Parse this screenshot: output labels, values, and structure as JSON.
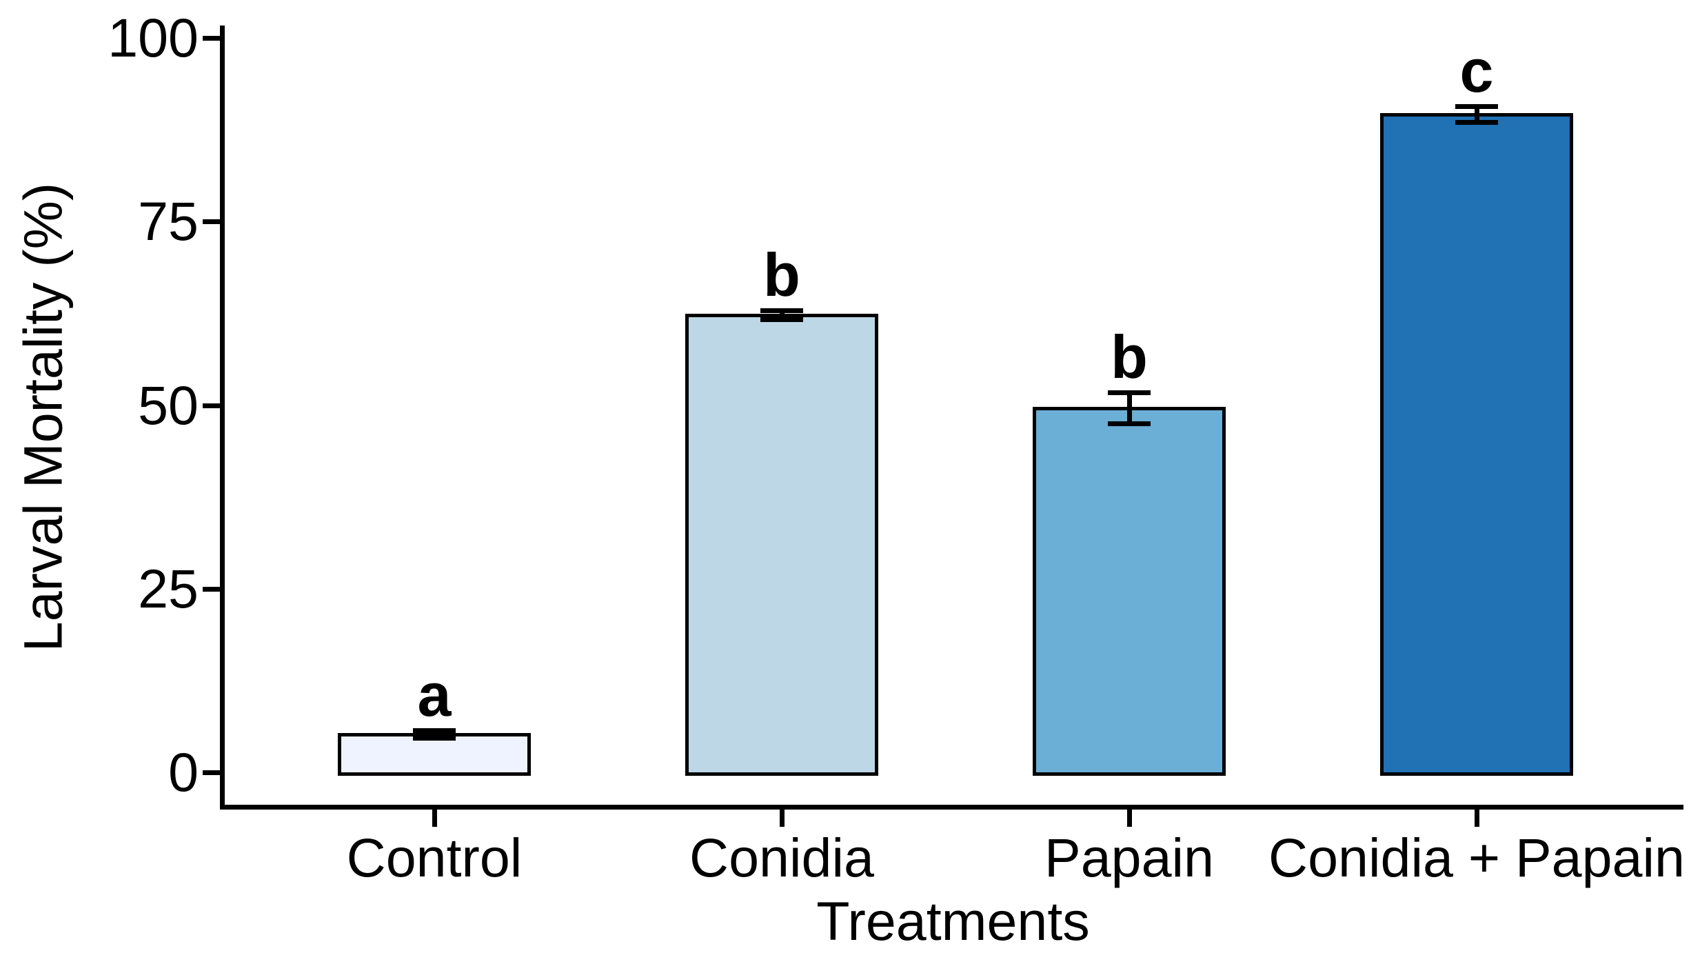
{
  "figure": {
    "background": "#ffffff",
    "axis_color": "#000000",
    "text_color": "#000000"
  },
  "chart_data": {
    "type": "bar",
    "title": "",
    "xlabel": "Treatments",
    "ylabel": "Larval Mortality (%)",
    "categories": [
      "Control",
      "Conidia",
      "Papain",
      "Conidia + Papain"
    ],
    "values": [
      5.2,
      62.3,
      49.6,
      89.6
    ],
    "errors": [
      0.5,
      0.6,
      2.1,
      1.1
    ],
    "sig_letters": [
      "a",
      "b",
      "b",
      "c"
    ],
    "bar_colors": [
      "#EFF3FF",
      "#BDD7E7",
      "#6BAED6",
      "#2171B5"
    ],
    "bar_border_color": "#000000",
    "error_bar_color": "#000000",
    "ylim": [
      0,
      100
    ],
    "yticks": [
      0,
      25,
      50,
      75,
      100
    ],
    "ytick_labels": [
      "0",
      "25",
      "50",
      "75",
      "100"
    ],
    "grid": false,
    "legend": null
  }
}
